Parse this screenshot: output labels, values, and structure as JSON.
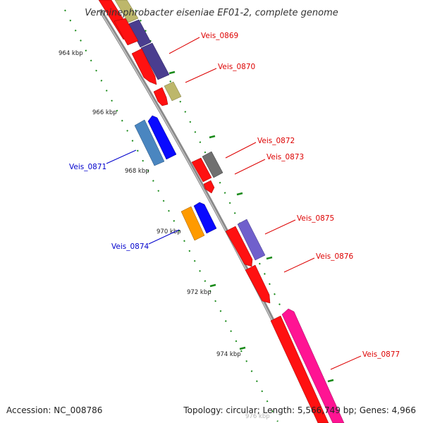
{
  "title": "Verminephrobacter eiseniae EF01-2, complete genome",
  "accession_text": "Accession: NC_008786",
  "summary_text": "Topology: circular; Length: 5,566,749 bp; Genes: 4,966",
  "scale_labels": [
    "964 kbp",
    "966 kbp",
    "968 kbp",
    "970 kbp",
    "972 kbp",
    "974 kbp",
    "976 kbp"
  ],
  "gene_labels": [
    {
      "id": "Veis_0869",
      "color": "#dd0000"
    },
    {
      "id": "Veis_0870",
      "color": "#dd0000"
    },
    {
      "id": "Veis_0871",
      "color": "#0000cc"
    },
    {
      "id": "Veis_0872",
      "color": "#dd0000"
    },
    {
      "id": "Veis_0873",
      "color": "#dd0000"
    },
    {
      "id": "Veis_0874",
      "color": "#0000cc"
    },
    {
      "id": "Veis_0875",
      "color": "#dd0000"
    },
    {
      "id": "Veis_0876",
      "color": "#dd0000"
    },
    {
      "id": "Veis_0877",
      "color": "#dd0000"
    }
  ],
  "colors": {
    "backbone": "#888888",
    "tick": "#1a8a1a",
    "red": "#ff1111",
    "blue": "#0a0aff",
    "navy": "#4a3d8f",
    "khaki": "#bdb76b",
    "steel": "#4a86c0",
    "gray": "#707070",
    "orange": "#ff9a00",
    "slate": "#7060cc",
    "pink": "#ff1493"
  }
}
